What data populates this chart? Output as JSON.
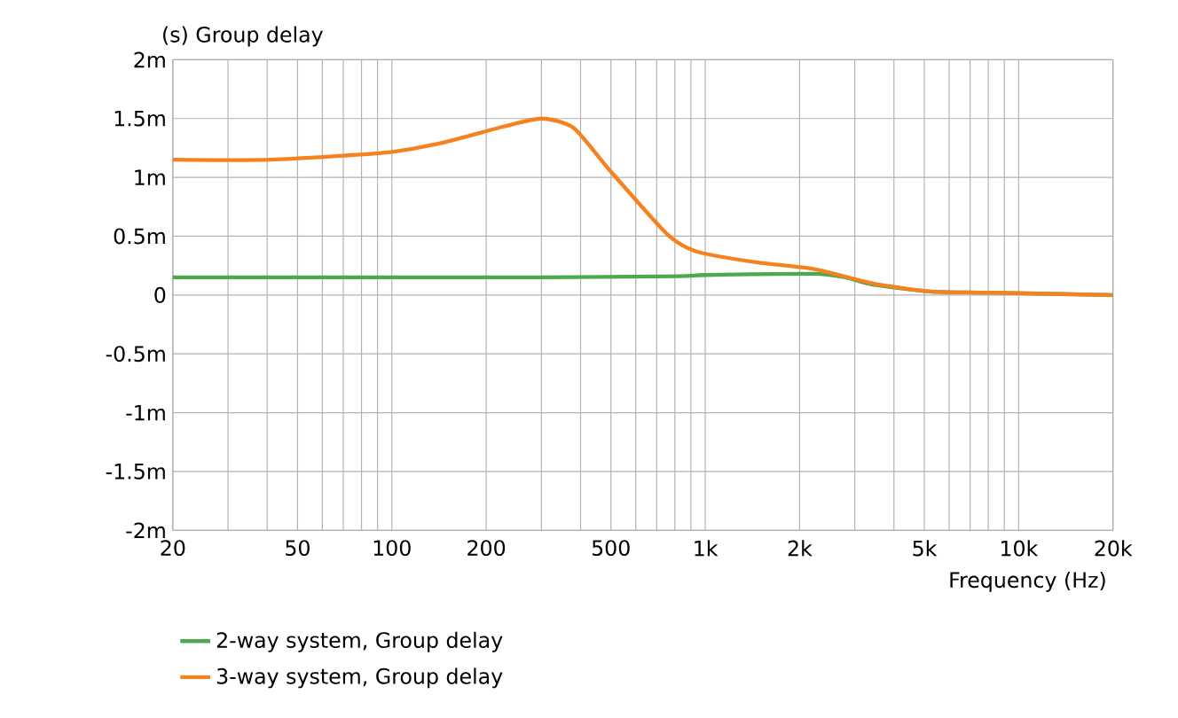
{
  "chart_data": {
    "type": "line",
    "title": "(s)  Group delay",
    "xlabel": "Frequency  (Hz)",
    "log": "x",
    "grid": true,
    "legend": "bottom left",
    "xlim": [
      20,
      20000
    ],
    "ylim": [
      -2,
      2
    ],
    "xticks": [
      {
        "value": 20,
        "label": "20"
      },
      {
        "value": 30,
        "label": null
      },
      {
        "value": 40,
        "label": null
      },
      {
        "value": 50,
        "label": "50"
      },
      {
        "value": 60,
        "label": null
      },
      {
        "value": 70,
        "label": null
      },
      {
        "value": 80,
        "label": null
      },
      {
        "value": 90,
        "label": null
      },
      {
        "value": 100,
        "label": "100"
      },
      {
        "value": 200,
        "label": "200"
      },
      {
        "value": 300,
        "label": null
      },
      {
        "value": 400,
        "label": null
      },
      {
        "value": 500,
        "label": "500"
      },
      {
        "value": 600,
        "label": null
      },
      {
        "value": 700,
        "label": null
      },
      {
        "value": 800,
        "label": null
      },
      {
        "value": 900,
        "label": null
      },
      {
        "value": 1000,
        "label": "1k"
      },
      {
        "value": 2000,
        "label": "2k"
      },
      {
        "value": 3000,
        "label": null
      },
      {
        "value": 4000,
        "label": null
      },
      {
        "value": 5000,
        "label": "5k"
      },
      {
        "value": 6000,
        "label": null
      },
      {
        "value": 7000,
        "label": null
      },
      {
        "value": 8000,
        "label": null
      },
      {
        "value": 9000,
        "label": null
      },
      {
        "value": 10000,
        "label": "10k"
      },
      {
        "value": 20000,
        "label": "20k"
      }
    ],
    "yticks": [
      {
        "value": -2,
        "label": "-2m"
      },
      {
        "value": -1.5,
        "label": "-1.5m"
      },
      {
        "value": -1,
        "label": "-1m"
      },
      {
        "value": -0.5,
        "label": "-0.5m"
      },
      0,
      {
        "value": 0.5,
        "label": "0.5m"
      },
      {
        "value": 1,
        "label": "1m"
      },
      {
        "value": 1.5,
        "label": "1.5m"
      },
      {
        "value": 2,
        "label": "2m"
      }
    ],
    "series": [
      {
        "name": "2-way system, Group delay",
        "color": "#4caa4c",
        "x": [
          20,
          100,
          300,
          820,
          1000,
          2200,
          2800,
          3400,
          5200,
          8000,
          20000
        ],
        "values": [
          0.15,
          0.15,
          0.15,
          0.16,
          0.17,
          0.18,
          0.15,
          0.09,
          0.03,
          0.02,
          0.0
        ]
      },
      {
        "name": "3-way system, Group delay",
        "color": "#f5821f",
        "x": [
          20,
          41,
          95,
          148,
          226,
          300,
          380,
          492,
          754,
          938,
          1437,
          2229,
          3414,
          5227,
          8020,
          20000
        ],
        "values": [
          1.15,
          1.15,
          1.21,
          1.3,
          1.43,
          1.5,
          1.42,
          1.07,
          0.52,
          0.37,
          0.28,
          0.22,
          0.1,
          0.03,
          0.02,
          0.0
        ]
      }
    ]
  }
}
